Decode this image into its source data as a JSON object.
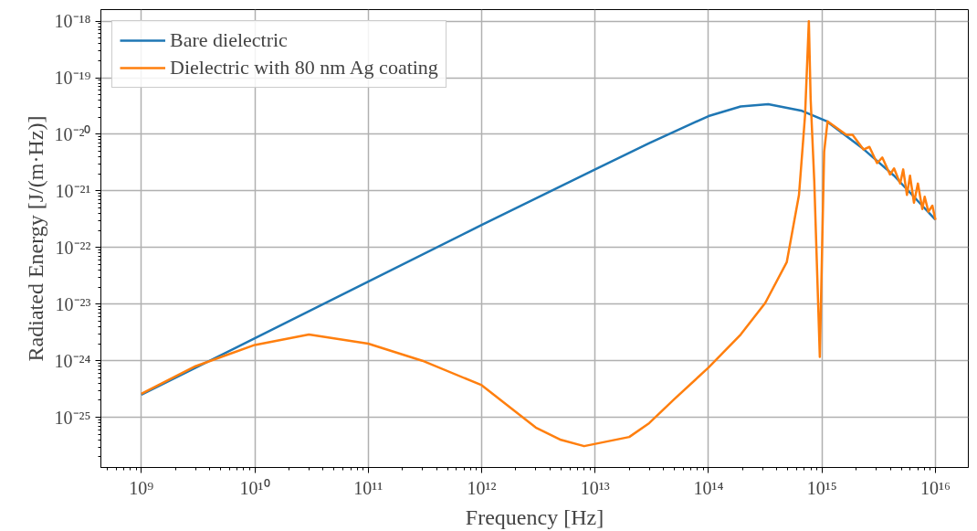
{
  "chart_data": {
    "type": "line",
    "xlabel": "Frequency [Hz]",
    "ylabel": "Radiated Energy [J/(m·Hz)]",
    "log": "xy",
    "grid": true,
    "legend": "top left",
    "line_style": "solid",
    "marker": "none",
    "xlim": [
      440000000.0,
      1.95e+16
    ],
    "ylim": [
      1.3e-26,
      1.6e-18
    ],
    "xticks": [
      {
        "value": 1000000000.0,
        "label": "10⁹"
      },
      {
        "value": 10000000000.0,
        "label": "10¹⁰"
      },
      {
        "value": 100000000000.0,
        "label": "10¹¹"
      },
      {
        "value": 1000000000000.0,
        "label": "10¹²"
      },
      {
        "value": 10000000000000.0,
        "label": "10¹³"
      },
      {
        "value": 100000000000000.0,
        "label": "10¹⁴"
      },
      {
        "value": 1000000000000000.0,
        "label": "10¹⁵"
      },
      {
        "value": 1e+16,
        "label": "10¹⁶"
      }
    ],
    "yticks": [
      {
        "value": 1e-25,
        "label": "10⁻²⁵"
      },
      {
        "value": 1e-24,
        "label": "10⁻²⁴"
      },
      {
        "value": 1e-23,
        "label": "10⁻²³"
      },
      {
        "value": 1e-22,
        "label": "10⁻²²"
      },
      {
        "value": 1e-21,
        "label": "10⁻²¹"
      },
      {
        "value": 1e-20,
        "label": "10⁻²⁰"
      },
      {
        "value": 1e-19,
        "label": "10⁻¹⁹"
      },
      {
        "value": 1e-18,
        "label": "10⁻¹⁸"
      }
    ],
    "series": [
      {
        "name": "Bare dielectric",
        "color": "#1f77b4",
        "x": [
          1000000000.0,
          10000000000.0,
          100000000000.0,
          1000000000000.0,
          10000000000000.0,
          30000000000000.0,
          100000000000000.0,
          192000000000000.0,
          336000000000000.0,
          667000000000000.0,
          1100000000000000.0,
          2320000000000000.0,
          4320000000000000.0,
          1e+16
        ],
        "values": [
          2.5e-25,
          2.5e-24,
          2.5e-23,
          2.5e-22,
          2.4e-21,
          7e-21,
          2.1e-20,
          3.1e-20,
          3.4e-20,
          2.6e-20,
          1.7e-20,
          5.5e-21,
          1.86e-21,
          3.1e-22
        ]
      },
      {
        "name": "Dielectric with 80 nm Ag coating",
        "color": "#ff7f0e",
        "x": [
          1000000000.0,
          3000000000.0,
          10000000000.0,
          30000000000.0,
          100000000000.0,
          300000000000.0,
          1000000000000.0,
          3000000000000.0,
          5000000000000.0,
          8000000000000.0,
          20000000000000.0,
          30000000000000.0,
          50000000000000.0,
          100000000000000.0,
          192000000000000.0,
          316000000000000.0,
          489000000000000.0,
          627000000000000.0,
          710000000000000.0,
          766000000000000.0,
          794000000000000.0,
          855000000000000.0,
          957000000000000.0,
          1045000000000000.0,
          1120000000000000.0,
          1640000000000000.0,
          1860000000000000.0,
          2320000000000000.0,
          2620000000000000.0,
          3060000000000000.0,
          3400000000000000.0,
          3980000000000000.0,
          4320000000000000.0,
          4890000000000000.0,
          5200000000000000.0,
          5610000000000000.0,
          5970000000000000.0,
          6470000000000000.0,
          7010000000000000.0,
          7660000000000000.0,
          8040000000000000.0,
          8670000000000000.0,
          9400000000000000.0,
          1e+16
        ],
        "values": [
          2.6e-25,
          8e-25,
          1.9e-24,
          2.9e-24,
          2e-24,
          1e-24,
          3.7e-25,
          6.6e-26,
          4e-26,
          3.1e-26,
          4.5e-26,
          7.9e-26,
          2.1e-25,
          7.6e-25,
          2.9e-24,
          1.05e-23,
          5.5e-23,
          8.5e-22,
          2.24e-20,
          1e-18,
          4.3e-20,
          1.5e-21,
          1.17e-24,
          4.9e-21,
          1.7e-20,
          9.8e-21,
          9.8e-21,
          5.4e-21,
          6e-21,
          3.1e-21,
          3.9e-21,
          1.95e-21,
          2.5e-21,
          1.35e-21,
          2.4e-21,
          8.5e-22,
          1.86e-21,
          6.2e-22,
          1.35e-21,
          4.8e-22,
          7.9e-22,
          4.3e-22,
          5.5e-22,
          3.1e-22
        ]
      }
    ]
  }
}
